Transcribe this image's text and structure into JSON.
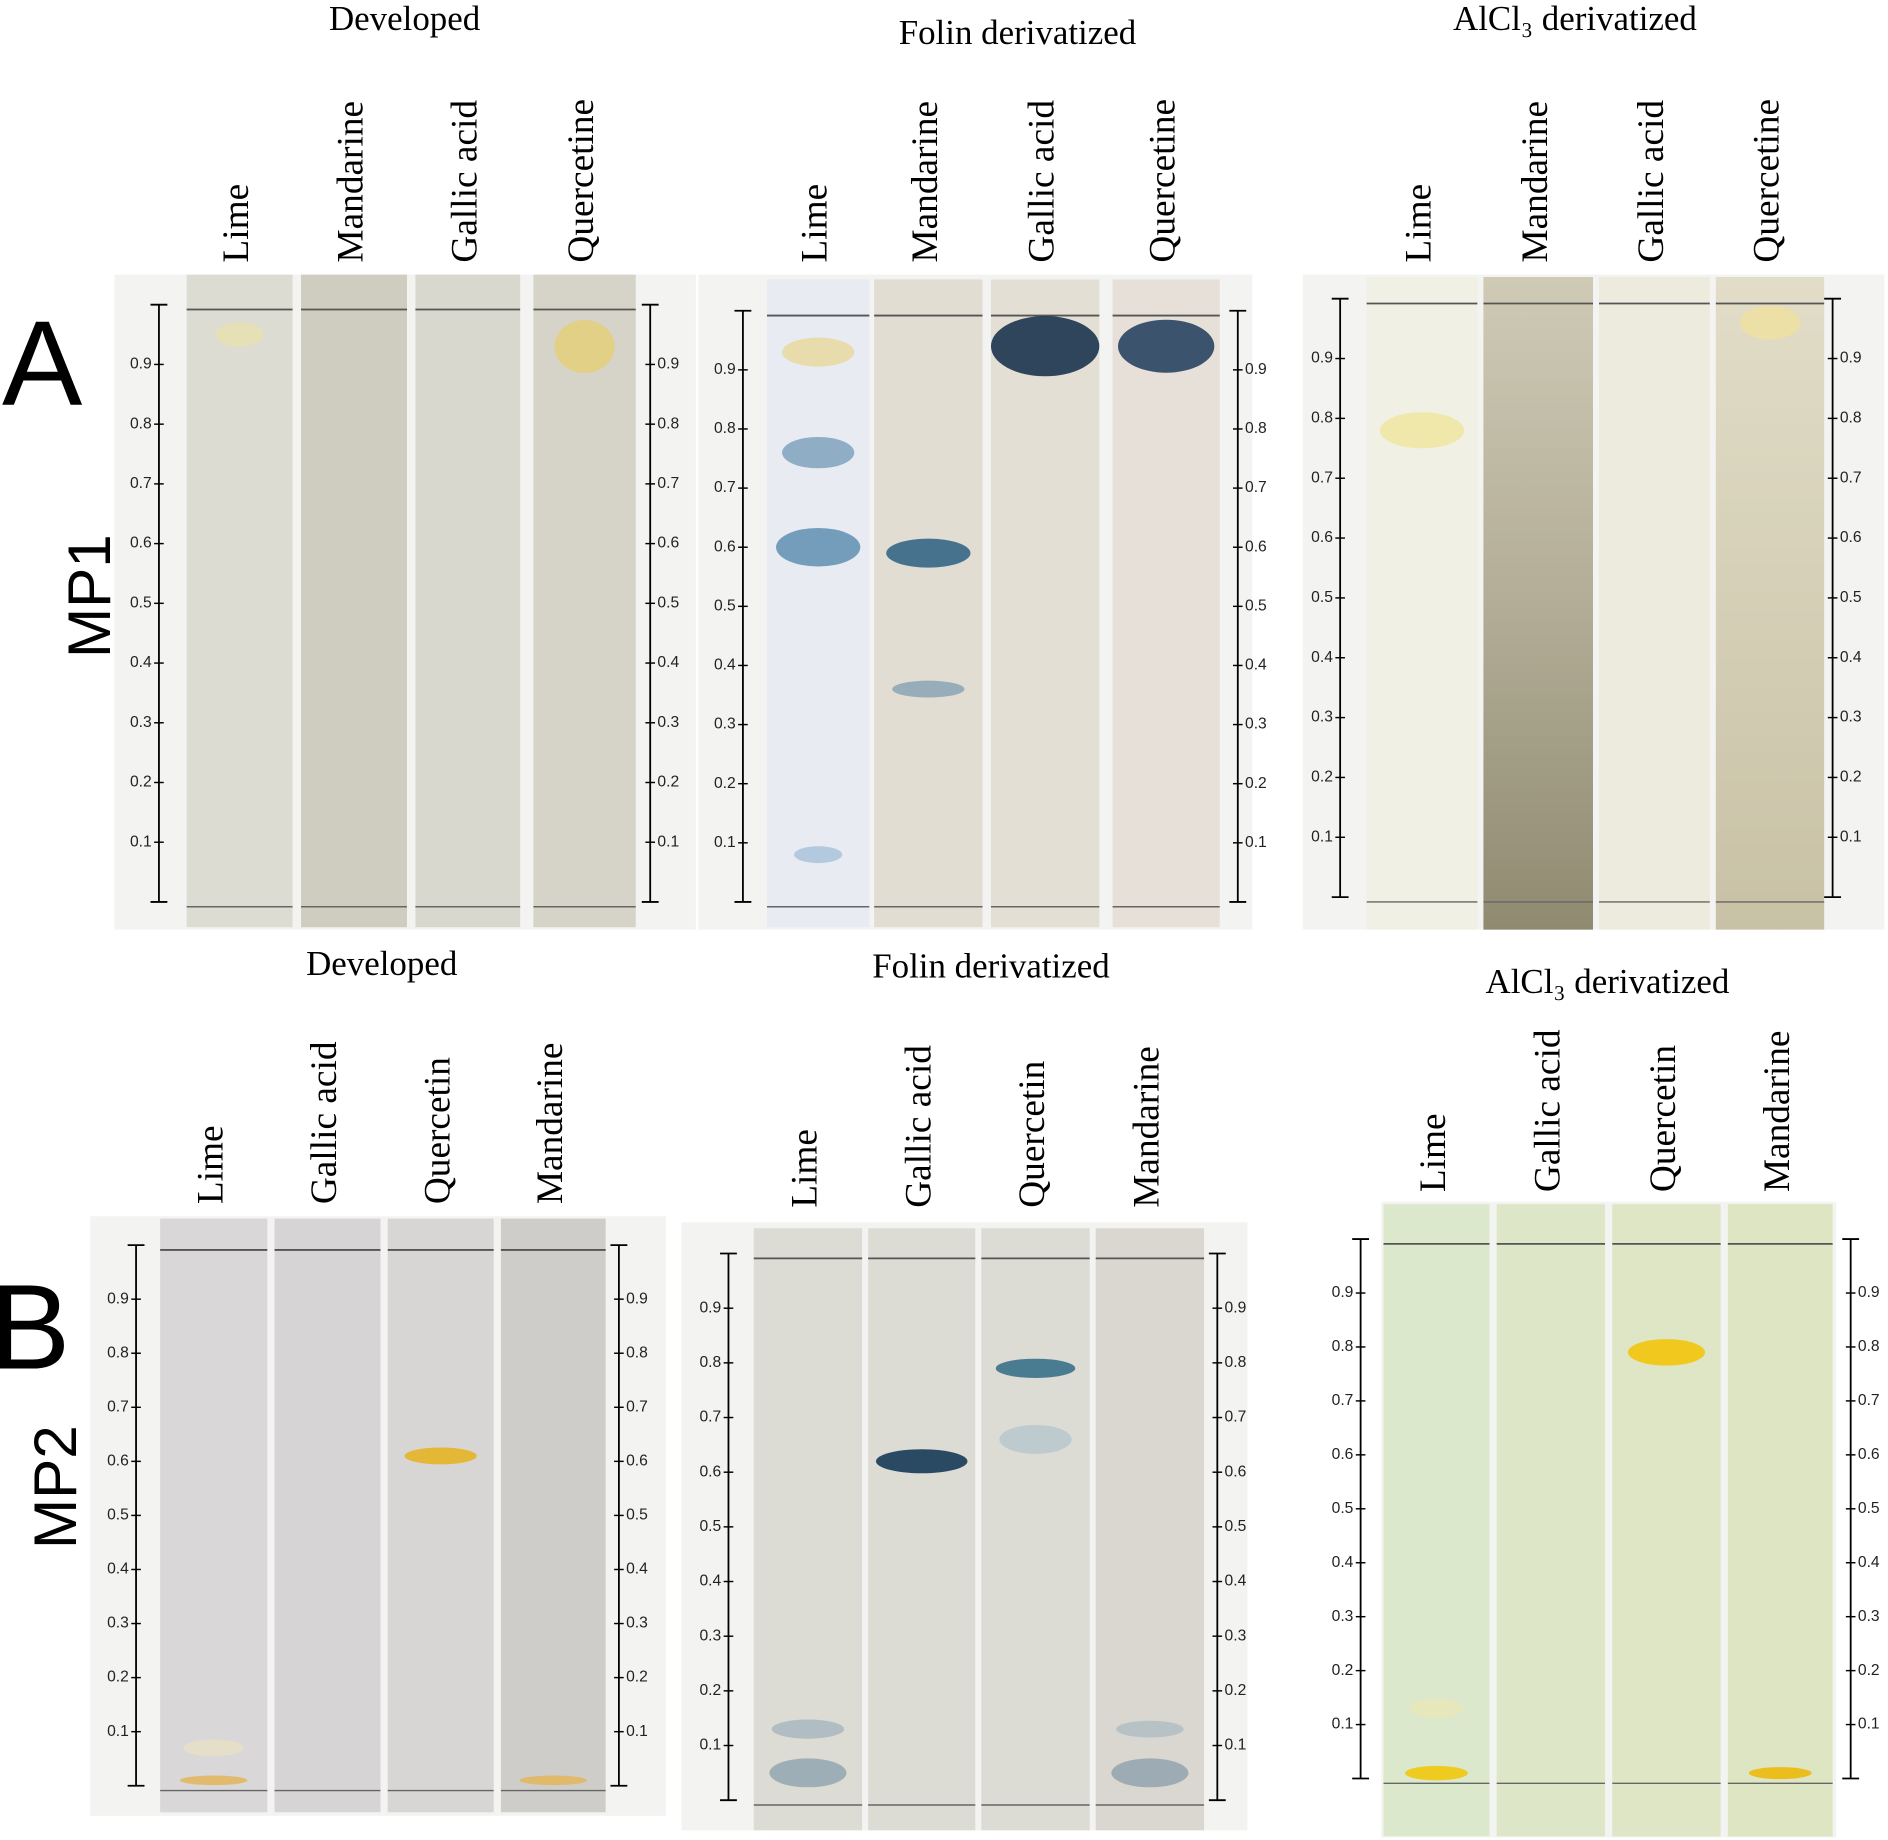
{
  "panels": [
    {
      "label": "A",
      "mobile_phase": "MP1",
      "plates": [
        {
          "title": "Developed",
          "lanes": [
            "Lime",
            "Mandarine",
            "Gallic acid",
            "Quercetine"
          ]
        },
        {
          "title": "Folin derivatized",
          "lanes": [
            "Lime",
            "Mandarine",
            "Gallic acid",
            "Quercetine"
          ]
        },
        {
          "title": "AlCl₃ derivatized",
          "lanes": [
            "Lime",
            "Mandarine",
            "Gallic acid",
            "Quercetine"
          ]
        }
      ]
    },
    {
      "label": "B",
      "mobile_phase": "MP2",
      "plates": [
        {
          "title": "Developed",
          "lanes": [
            "Lime",
            "Gallic acid",
            "Quercetin",
            "Mandarine"
          ]
        },
        {
          "title": "Folin derivatized",
          "lanes": [
            "Lime",
            "Gallic acid",
            "Quercetin",
            "Mandarine"
          ]
        },
        {
          "title": "AlCl₃ derivatized",
          "lanes": [
            "Lime",
            "Gallic acid",
            "Quercetin",
            "Mandarine"
          ]
        }
      ]
    }
  ],
  "rf_ticks": [
    "0.1",
    "0.2",
    "0.3",
    "0.4",
    "0.5",
    "0.6",
    "0.7",
    "0.8",
    "0.9"
  ]
}
